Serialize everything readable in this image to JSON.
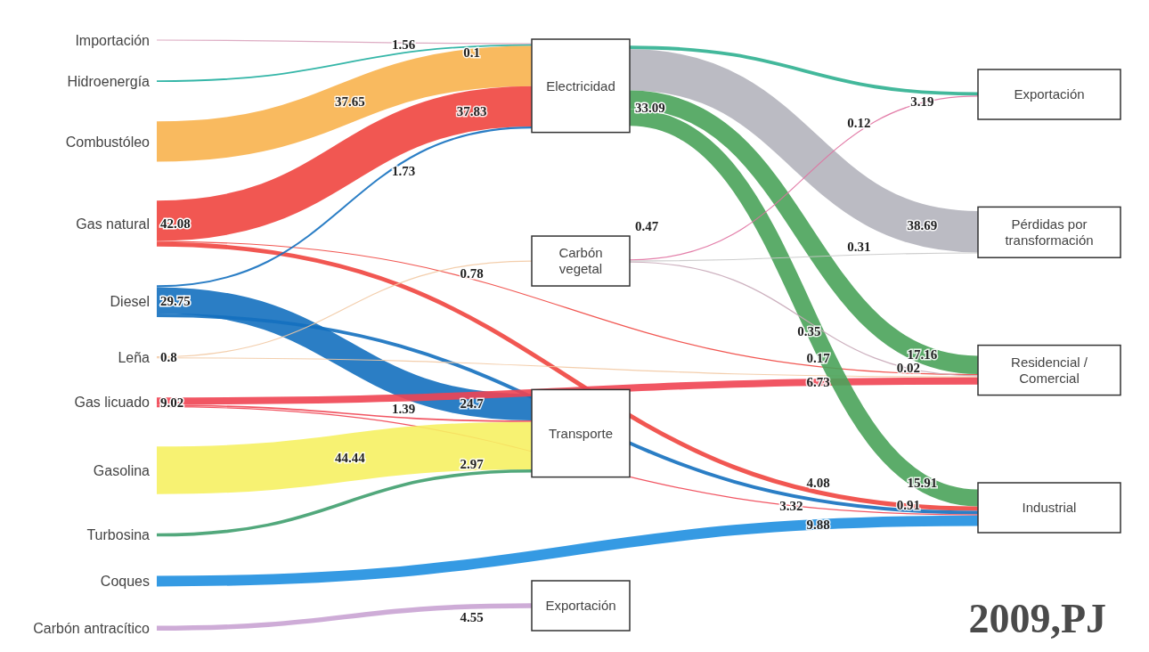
{
  "chart_data": {
    "type": "other",
    "title": "2009,PJ",
    "categories": [
      "Importación",
      "Hidroenergía",
      "Combustóleo",
      "Gas natural",
      "Diesel",
      "Leña",
      "Gas licuado",
      "Gasolina",
      "Turbosina",
      "Coques",
      "Carbón antracítico",
      "Electricidad",
      "Carbón vegetal",
      "Transporte",
      "Exportación",
      "Pérdidas por transformación",
      "Residencial / Comercial",
      "Industrial",
      "Exportación"
    ],
    "values": [
      null,
      null,
      null,
      42.08,
      29.75,
      0.8,
      9.02,
      null,
      null,
      null,
      null,
      null,
      0.47,
      null,
      null,
      null,
      null,
      null,
      null
    ],
    "series": [
      {
        "color": "#d9a3bd",
        "values": [
          null,
          null,
          null,
          null,
          null,
          null,
          null,
          null,
          null,
          null,
          null,
          0.1,
          null,
          null,
          null,
          null,
          null,
          null,
          null
        ]
      },
      {
        "color": "#1fae9e",
        "values": [
          null,
          null,
          null,
          null,
          null,
          null,
          null,
          null,
          null,
          null,
          null,
          1.56,
          null,
          null,
          null,
          null,
          null,
          null,
          null
        ]
      },
      {
        "color": "#f8b24e",
        "values": [
          null,
          null,
          null,
          null,
          null,
          null,
          null,
          null,
          null,
          null,
          null,
          37.65,
          null,
          null,
          null,
          null,
          null,
          null,
          null
        ]
      },
      {
        "color": "#f0453f",
        "values": [
          null,
          null,
          null,
          null,
          null,
          null,
          null,
          null,
          null,
          null,
          null,
          37.83,
          null,
          null,
          null,
          null,
          0.17,
          4.08,
          null
        ]
      },
      {
        "color": "#1470bf",
        "values": [
          null,
          null,
          null,
          null,
          null,
          null,
          null,
          null,
          null,
          null,
          null,
          1.73,
          null,
          24.7,
          null,
          null,
          null,
          3.32,
          null
        ]
      },
      {
        "color": "#f2c9a3",
        "values": [
          null,
          null,
          null,
          null,
          null,
          null,
          null,
          null,
          null,
          null,
          null,
          null,
          0.78,
          null,
          null,
          null,
          0.02,
          null,
          null
        ]
      },
      {
        "color": "#ef4452",
        "values": [
          null,
          null,
          null,
          null,
          null,
          null,
          null,
          null,
          null,
          null,
          null,
          null,
          null,
          1.39,
          null,
          null,
          6.73,
          0.91,
          null
        ]
      },
      {
        "color": "#f6f163",
        "values": [
          null,
          null,
          null,
          null,
          null,
          null,
          null,
          null,
          null,
          null,
          null,
          null,
          null,
          44.44,
          null,
          null,
          null,
          null,
          null
        ]
      },
      {
        "color": "#3f9f6e",
        "values": [
          null,
          null,
          null,
          null,
          null,
          null,
          null,
          null,
          null,
          null,
          null,
          null,
          null,
          2.97,
          null,
          null,
          null,
          null,
          null
        ]
      },
      {
        "color": "#1f8fe0",
        "values": [
          null,
          null,
          null,
          null,
          null,
          null,
          null,
          null,
          null,
          null,
          null,
          null,
          null,
          null,
          null,
          null,
          null,
          9.88,
          null
        ]
      },
      {
        "color": "#c9a3d3",
        "values": [
          null,
          null,
          null,
          null,
          null,
          null,
          null,
          null,
          null,
          null,
          null,
          null,
          null,
          null,
          null,
          null,
          null,
          null,
          4.55
        ]
      },
      {
        "color": "#4aa35a",
        "colors": [
          null,
          null,
          null,
          null,
          null,
          null,
          null,
          null,
          null,
          null,
          null,
          null,
          null,
          null,
          "#2fb090",
          "#b4b4bc",
          null,
          null,
          null
        ],
        "values": [
          null,
          null,
          null,
          null,
          null,
          null,
          null,
          null,
          null,
          null,
          null,
          null,
          null,
          null,
          3.19,
          38.69,
          17.16,
          15.91,
          null
        ]
      },
      {
        "color": "#e070a0",
        "colors": [
          null,
          null,
          null,
          null,
          null,
          null,
          null,
          null,
          null,
          null,
          null,
          null,
          null,
          null,
          null,
          "#c8c8c8",
          "#c8a8b8",
          null,
          null
        ],
        "values": [
          null,
          null,
          null,
          null,
          null,
          null,
          null,
          null,
          null,
          null,
          null,
          null,
          null,
          null,
          0.12,
          0.31,
          0.35,
          null,
          null
        ]
      }
    ],
    "data_labels": true,
    "annotations": [
      "33.09"
    ]
  }
}
